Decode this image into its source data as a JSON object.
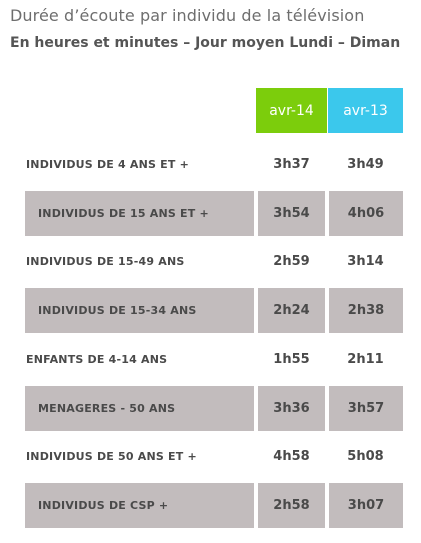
{
  "title": "Durée d’écoute par individu de la télévision",
  "subtitle": "En heures et minutes – Jour moyen Lundi – Diman",
  "colors": {
    "col1": "#7ccd0c",
    "col2": "#3bc8ec",
    "shade": "#c2bcbd"
  },
  "columns": [
    {
      "label": "avr-14"
    },
    {
      "label": "avr-13"
    }
  ],
  "rows": [
    {
      "label": "INDIVIDUS DE 4 ANS ET +",
      "v1": "3h37",
      "v2": "3h49"
    },
    {
      "label": "INDIVIDUS DE 15 ANS ET +",
      "v1": "3h54",
      "v2": "4h06"
    },
    {
      "label": "INDIVIDUS DE 15-49 ANS",
      "v1": "2h59",
      "v2": "3h14"
    },
    {
      "label": "INDIVIDUS DE 15-34 ANS",
      "v1": "2h24",
      "v2": "2h38"
    },
    {
      "label": "ENFANTS DE 4-14 ANS",
      "v1": "1h55",
      "v2": "2h11"
    },
    {
      "label": "MENAGERES - 50 ANS",
      "v1": "3h36",
      "v2": "3h57"
    },
    {
      "label": "INDIVIDUS DE 50 ANS ET +",
      "v1": "4h58",
      "v2": "5h08"
    },
    {
      "label": "INDIVIDUS DE CSP +",
      "v1": "2h58",
      "v2": "3h07"
    }
  ]
}
